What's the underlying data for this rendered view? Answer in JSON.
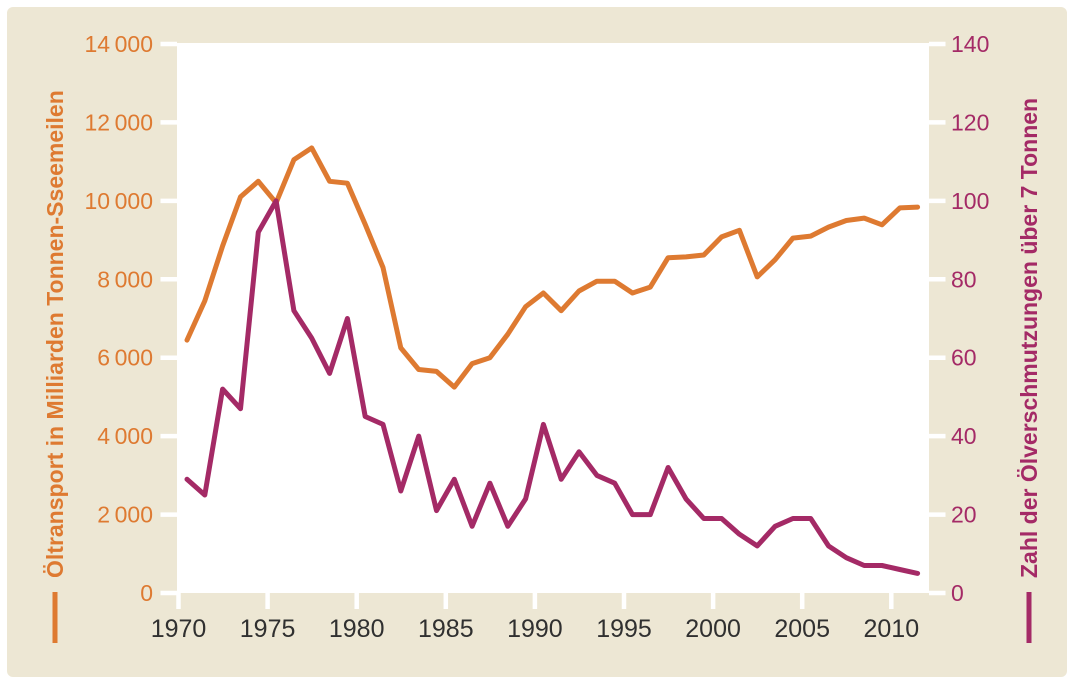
{
  "panel": {
    "background": "#EDE7D4",
    "plot_background": "#FFFFFF",
    "tick_color": "#FFFFFF"
  },
  "left_axis": {
    "label": "Öltransport in Milliarden Tonnen-Sseemeilen",
    "color": "#DE7A31",
    "min": 0,
    "max": 14000,
    "step": 2000,
    "tick_labels": [
      "0",
      "2 000",
      "4 000",
      "6 000",
      "8 000",
      "10 000",
      "12 000",
      "14 000"
    ]
  },
  "right_axis": {
    "label": "Zahl der Ölverschmutzungen über 7 Tonnen",
    "color": "#A42A66",
    "min": 0,
    "max": 140,
    "step": 20,
    "tick_labels": [
      "0",
      "20",
      "40",
      "60",
      "80",
      "100",
      "120",
      "140"
    ]
  },
  "x_axis": {
    "color": "#303030",
    "tick_years": [
      1970,
      1975,
      1980,
      1985,
      1990,
      1995,
      2000,
      2005,
      2010
    ],
    "tick_labels": [
      "1970",
      "1975",
      "1980",
      "1985",
      "1990",
      "1995",
      "2000",
      "2005",
      "2010"
    ]
  },
  "chart_data": {
    "type": "line",
    "x": [
      1970,
      1971,
      1972,
      1973,
      1974,
      1975,
      1976,
      1977,
      1978,
      1979,
      1980,
      1981,
      1982,
      1983,
      1984,
      1985,
      1986,
      1987,
      1988,
      1989,
      1990,
      1991,
      1992,
      1993,
      1994,
      1995,
      1996,
      1997,
      1998,
      1999,
      2000,
      2001,
      2002,
      2003,
      2004,
      2005,
      2006,
      2007,
      2008,
      2009,
      2010,
      2011
    ],
    "series": [
      {
        "name": "Öltransport in Milliarden Tonnen-Sseemeilen",
        "axis": "left",
        "color": "#DE7A31",
        "values": [
          6450,
          7450,
          8850,
          10100,
          10500,
          9950,
          11050,
          11350,
          10500,
          10450,
          9400,
          8300,
          6250,
          5700,
          5650,
          5250,
          5850,
          6000,
          6600,
          7300,
          7650,
          7200,
          7700,
          7950,
          7950,
          7650,
          7800,
          8550,
          8570,
          8620,
          9080,
          9250,
          8060,
          8500,
          9050,
          9100,
          9330,
          9500,
          9560,
          9390,
          9820,
          9840
        ]
      },
      {
        "name": "Zahl der Ölverschmutzungen über 7 Tonnen",
        "axis": "right",
        "color": "#A42A66",
        "values": [
          29,
          25,
          52,
          47,
          92,
          100,
          72,
          65,
          56,
          70,
          45,
          43,
          26,
          40,
          21,
          29,
          17,
          28,
          17,
          24,
          43,
          29,
          36,
          30,
          28,
          20,
          20,
          32,
          24,
          19,
          19,
          15,
          12,
          17,
          19,
          19,
          12,
          9,
          7,
          7,
          6,
          5
        ]
      }
    ],
    "left_ylim": [
      0,
      14000
    ],
    "right_ylim": [
      0,
      140
    ],
    "grid": false,
    "legend_position": "alongside-axis-labels"
  }
}
